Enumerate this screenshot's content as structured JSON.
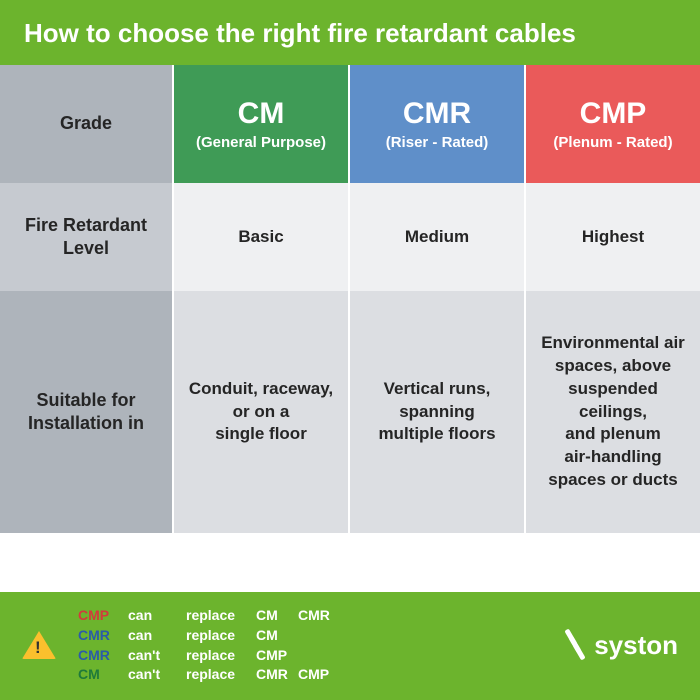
{
  "title": "How to choose the right fire retardant cables",
  "colors": {
    "page_bg": "#6cb42d",
    "label_bg_1": "#aeb4bb",
    "label_bg_2": "#c6cad0",
    "label_bg_3": "#aeb4bb",
    "cm_bg": "#3f9b56",
    "cmr_bg": "#5f8fc9",
    "cmp_bg": "#ea5a5a",
    "row_bg_1": "#eff0f2",
    "row_bg_2": "#dcdee2",
    "text_dark": "#252525",
    "white": "#ffffff",
    "warn": "#fbc02d",
    "rule_cmp": "#d23b3b",
    "rule_cmr": "#2b5ca8",
    "rule_cm": "#1f7a3a"
  },
  "header": {
    "grade_label": "Grade",
    "cols": [
      {
        "name": "CM",
        "sub": "(General Purpose)"
      },
      {
        "name": "CMR",
        "sub": "(Riser - Rated)"
      },
      {
        "name": "CMP",
        "sub": "(Plenum - Rated)"
      }
    ]
  },
  "rows": {
    "level": {
      "label": "Fire Retardant Level",
      "values": [
        "Basic",
        "Medium",
        "Highest"
      ]
    },
    "install": {
      "label": "Suitable for Installation in",
      "values": [
        "Conduit, raceway,\nor on a\nsingle floor",
        "Vertical runs, spanning\nmultiple floors",
        "Environmental air spaces, above suspended ceilings,\nand plenum\nair-handling spaces or ducts"
      ]
    }
  },
  "rules": [
    {
      "code": "CMP",
      "code_color": "#d23b3b",
      "can": "can",
      "rep": "replace",
      "t1": "CM",
      "t2": "CMR"
    },
    {
      "code": "CMR",
      "code_color": "#2b5ca8",
      "can": "can",
      "rep": "replace",
      "t1": "CM",
      "t2": ""
    },
    {
      "code": "CMR",
      "code_color": "#2b5ca8",
      "can": "can't",
      "rep": "replace",
      "t1": "CMP",
      "t2": ""
    },
    {
      "code": "CM",
      "code_color": "#1f7a3a",
      "can": "can't",
      "rep": "replace",
      "t1": "CMR",
      "t2": "CMP"
    }
  ],
  "brand": "syston"
}
